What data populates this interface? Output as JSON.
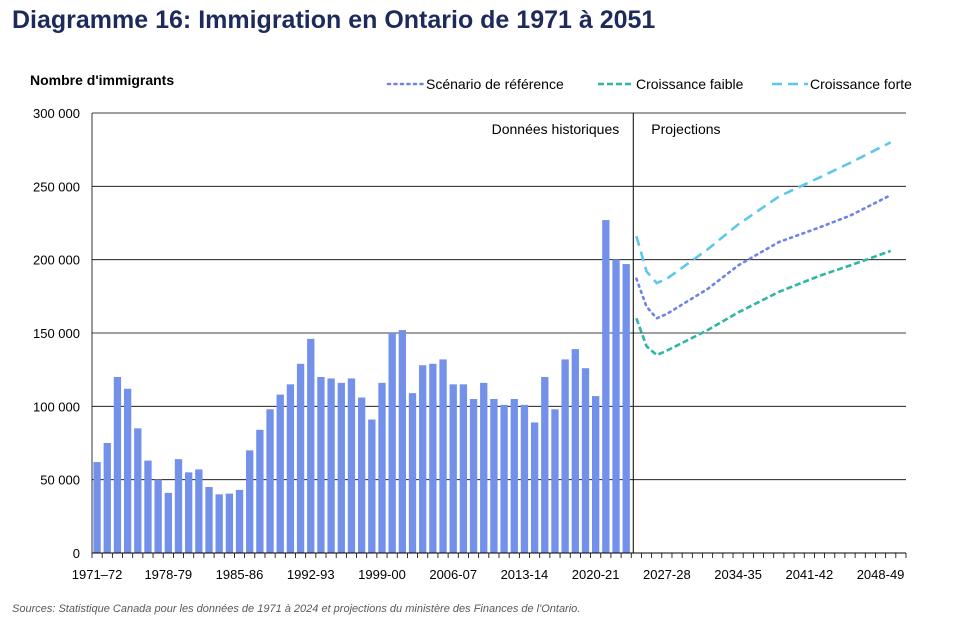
{
  "chart_data": {
    "type": "bar",
    "title": "Diagramme 16: Immigration en Ontario de 1971 à 2051",
    "ylabel": "Nombre d'immigrants",
    "xlabel": "",
    "ylim": [
      0,
      300000
    ],
    "yticks": [
      0,
      50000,
      100000,
      150000,
      200000,
      250000,
      300000
    ],
    "ytick_labels": [
      "0",
      "50 000",
      "100 000",
      "150 000",
      "200 000",
      "250 000",
      "300 000"
    ],
    "x_start": "1971–72",
    "x_end": "2050-51",
    "x_tick_labels": [
      {
        "index": 0,
        "label": "1971–72"
      },
      {
        "index": 7,
        "label": "1978-79"
      },
      {
        "index": 14,
        "label": "1985-86"
      },
      {
        "index": 21,
        "label": "1992-93"
      },
      {
        "index": 28,
        "label": "1999-00"
      },
      {
        "index": 35,
        "label": "2006-07"
      },
      {
        "index": 42,
        "label": "2013-14"
      },
      {
        "index": 49,
        "label": "2020-21"
      },
      {
        "index": 56,
        "label": "2027-28"
      },
      {
        "index": 63,
        "label": "2034-35"
      },
      {
        "index": 70,
        "label": "2041-42"
      },
      {
        "index": 77,
        "label": "2048-49"
      }
    ],
    "regions": {
      "historical": "Données historiques",
      "projections": "Projections"
    },
    "historical": {
      "name": "Données historiques",
      "start_index": 0,
      "values": [
        62000,
        75000,
        120000,
        112000,
        85000,
        63000,
        50000,
        41000,
        64000,
        55000,
        57000,
        45000,
        40000,
        40500,
        43000,
        70000,
        84000,
        98000,
        108000,
        115000,
        129000,
        146000,
        120000,
        119000,
        116000,
        119000,
        106000,
        91000,
        116000,
        150000,
        152000,
        109000,
        128000,
        129000,
        132000,
        115000,
        115000,
        105000,
        116000,
        105000,
        101000,
        105000,
        101000,
        89000,
        120000,
        98000,
        132000,
        139000,
        126000,
        107000,
        227000,
        200000,
        197000
      ]
    },
    "series": [
      {
        "name": "Scénario de référence",
        "style": "dotted",
        "color": "#6f84e3",
        "x": [
          53,
          54,
          55,
          56,
          60,
          63,
          67,
          71,
          74,
          78
        ],
        "values": [
          187000,
          168000,
          160000,
          163000,
          180000,
          196000,
          212000,
          222000,
          230000,
          244000
        ]
      },
      {
        "name": "Croissance faible",
        "style": "dashed",
        "color": "#2fb5a6",
        "x": [
          53,
          54,
          55,
          56,
          60,
          63,
          67,
          71,
          74,
          78
        ],
        "values": [
          160000,
          141000,
          135000,
          138000,
          152000,
          164000,
          178000,
          189000,
          196000,
          206000
        ]
      },
      {
        "name": "Croissance forte",
        "style": "longdash",
        "color": "#5ec8ec",
        "x": [
          53,
          54,
          55,
          56,
          60,
          63,
          67,
          71,
          74,
          78
        ],
        "values": [
          216000,
          192000,
          184000,
          187000,
          207000,
          224000,
          243000,
          256000,
          266000,
          280000
        ]
      }
    ],
    "bar_color": "#7391ea",
    "grid": true,
    "legend_position": "top-right",
    "source": "Sources: Statistique Canada pour les données de 1971 à 2024 et projections du ministère des Finances de l'Ontario."
  }
}
